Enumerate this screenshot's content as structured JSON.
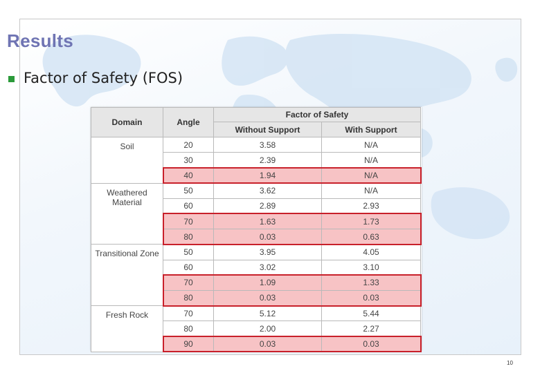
{
  "slide": {
    "title": "Results",
    "bullet": "Factor of Safety (FOS)",
    "page_number": "10"
  },
  "table": {
    "headers": {
      "domain": "Domain",
      "angle": "Angle",
      "group": "Factor of Safety",
      "without": "Without Support",
      "with": "With Support"
    },
    "domains": [
      {
        "label": "Soil",
        "rows": [
          {
            "angle": "20",
            "without": "3.58",
            "with": "N/A",
            "highlight": false
          },
          {
            "angle": "30",
            "without": "2.39",
            "with": "N/A",
            "highlight": false
          },
          {
            "angle": "40",
            "without": "1.94",
            "with": "N/A",
            "highlight": true
          }
        ]
      },
      {
        "label": "Weathered Material",
        "rows": [
          {
            "angle": "50",
            "without": "3.62",
            "with": "N/A",
            "highlight": false
          },
          {
            "angle": "60",
            "without": "2.89",
            "with": "2.93",
            "highlight": false
          },
          {
            "angle": "70",
            "without": "1.63",
            "with": "1.73",
            "highlight": true
          },
          {
            "angle": "80",
            "without": "0.03",
            "with": "0.63",
            "highlight": true
          }
        ]
      },
      {
        "label": "Transitional Zone",
        "rows": [
          {
            "angle": "50",
            "without": "3.95",
            "with": "4.05",
            "highlight": false
          },
          {
            "angle": "60",
            "without": "3.02",
            "with": "3.10",
            "highlight": false
          },
          {
            "angle": "70",
            "without": "1.09",
            "with": "1.33",
            "highlight": true
          },
          {
            "angle": "80",
            "without": "0.03",
            "with": "0.03",
            "highlight": true
          }
        ]
      },
      {
        "label": "Fresh Rock",
        "rows": [
          {
            "angle": "70",
            "without": "5.12",
            "with": "5.44",
            "highlight": false
          },
          {
            "angle": "80",
            "without": "2.00",
            "with": "2.27",
            "highlight": false
          },
          {
            "angle": "90",
            "without": "0.03",
            "with": "0.03",
            "highlight": true
          }
        ]
      }
    ]
  },
  "colors": {
    "title": "#6f74b3",
    "bullet": "#2b9a3a",
    "highlight_fill": "#f7c3c5",
    "highlight_border": "#c8202a"
  }
}
